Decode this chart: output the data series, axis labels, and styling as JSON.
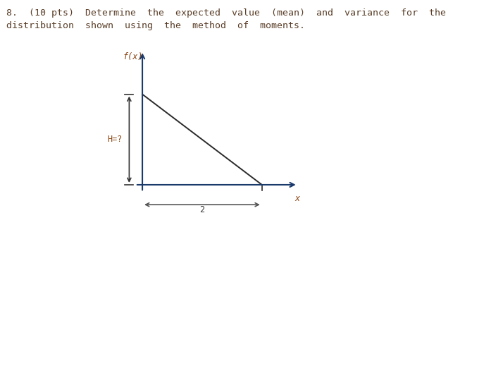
{
  "title_line1": "8.  (10 pts)  Determine  the  expected  value  (mean)  and  variance  for  the",
  "title_line2": "distribution  shown  using  the  method  of  moments.",
  "title_color": "#5a3e28",
  "title_fontsize": 9.5,
  "axis_color": "#1a3a6b",
  "triangle_color": "#2a2a2a",
  "annotation_color": "#8B4513",
  "h_arrow_color": "#333333",
  "span_color": "#555555",
  "label_fx": "f(x)",
  "label_x": "x",
  "label_H": "H=?",
  "label_2": "2",
  "fig_width": 6.87,
  "fig_height": 5.26,
  "dpi": 100
}
